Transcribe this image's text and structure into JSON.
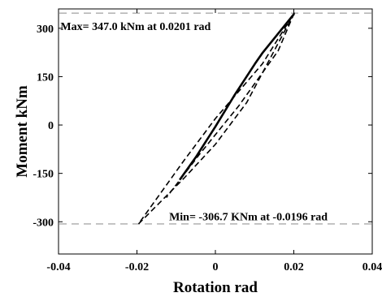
{
  "chart_data": {
    "type": "line",
    "title": "",
    "xlabel": "Rotation rad",
    "ylabel": "Moment kNm",
    "xlim": [
      -0.04,
      0.04
    ],
    "ylim": [
      -400,
      360
    ],
    "x_ticks": [
      -0.04,
      -0.02,
      0,
      0.02,
      0.04
    ],
    "x_tick_labels": [
      "-0.04",
      "-0.02",
      "0",
      "0.02",
      "0.04"
    ],
    "y_ticks": [
      -300,
      -150,
      0,
      150,
      300
    ],
    "y_tick_labels": [
      "-300",
      "-150",
      "0",
      "150",
      "300"
    ],
    "grid": false,
    "reference_lines": [
      {
        "axis": "y",
        "value": 347.0,
        "style": "dashed",
        "color": "#aaaaaa"
      },
      {
        "axis": "y",
        "value": -306.7,
        "style": "dashed",
        "color": "#aaaaaa"
      }
    ],
    "annotations": {
      "max": {
        "text": "Max= 347.0 kNm at 0.0201 rad",
        "x": -0.0395,
        "y": 307
      },
      "min": {
        "text": "Min= -306.7 KNm at -0.0196 rad",
        "x": -0.0118,
        "y": -283
      }
    },
    "series": [
      {
        "style": "solid",
        "color": "#000000",
        "points": [
          [
            -0.0091,
            -170
          ],
          [
            -0.005,
            -100
          ],
          [
            0,
            -5
          ],
          [
            0.005,
            95
          ],
          [
            0.0101,
            190
          ],
          [
            0.0121,
            225
          ],
          [
            0.0201,
            345
          ]
        ]
      },
      {
        "style": "dashed",
        "color": "#000000",
        "points": [
          [
            -0.0196,
            -306.7
          ],
          [
            -0.008,
            -165
          ],
          [
            0.0,
            -60
          ],
          [
            0.008,
            70
          ],
          [
            0.0201,
            347
          ],
          [
            0.012,
            190
          ],
          [
            0.0,
            20
          ],
          [
            -0.008,
            -110
          ],
          [
            -0.0196,
            -306.7
          ]
        ]
      },
      {
        "style": "dashed",
        "color": "#000000",
        "points": [
          [
            0.0201,
            347
          ],
          [
            0.016,
            230
          ],
          [
            0.006,
            60
          ],
          [
            -0.004,
            -90
          ],
          [
            -0.0125,
            -225
          ]
        ]
      }
    ]
  }
}
